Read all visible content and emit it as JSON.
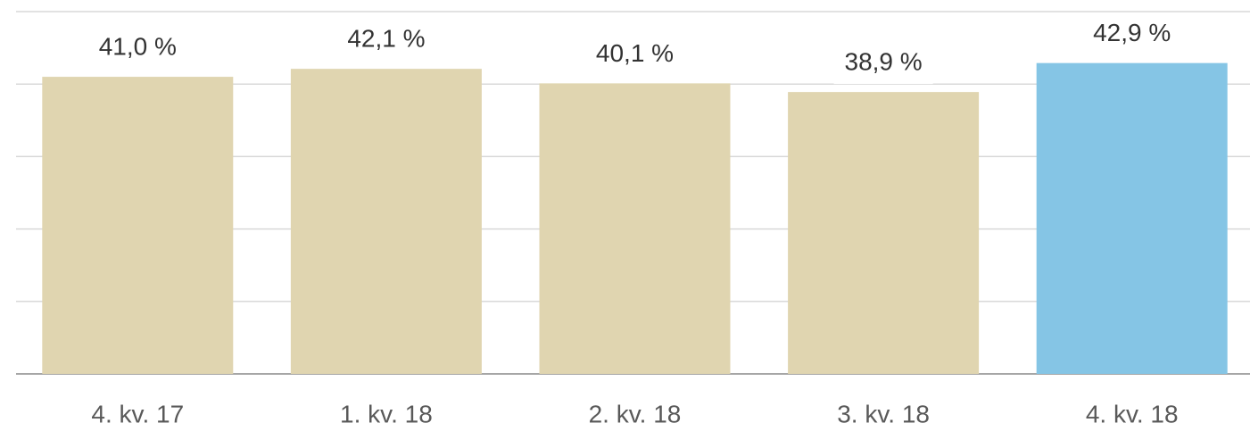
{
  "chart_data": {
    "type": "bar",
    "categories": [
      "4. kv. 17",
      "1. kv. 18",
      "2. kv. 18",
      "3. kv. 18",
      "4. kv. 18"
    ],
    "values": [
      41.0,
      42.1,
      40.1,
      38.9,
      42.9
    ],
    "value_labels": [
      "41,0 %",
      "42,1 %",
      "40,1 %",
      "38,9 %",
      "42,9 %"
    ],
    "colors": [
      "#e0d5b0",
      "#e0d5b0",
      "#e0d5b0",
      "#e0d5b0",
      "#85c5e5"
    ],
    "ylim": [
      0,
      50
    ],
    "yticks": [
      0,
      10,
      20,
      30,
      40,
      50
    ],
    "grid": true
  }
}
